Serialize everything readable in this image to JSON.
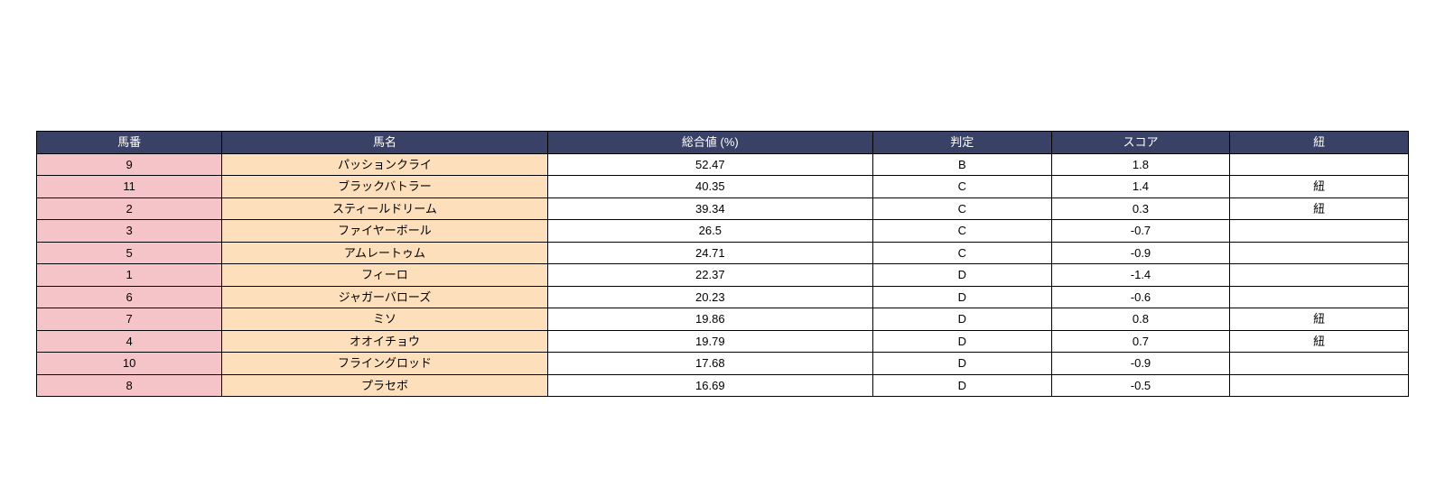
{
  "table": {
    "type": "table",
    "header_bg": "#3a4166",
    "header_color": "#ffffff",
    "border_color": "#000000",
    "col_num_bg": "#f5c4c9",
    "col_name_bg": "#fde0bb",
    "col_plain_bg": "#ffffff",
    "font_size": 13,
    "columns": [
      {
        "key": "num",
        "label": "馬番",
        "width": "13.5%"
      },
      {
        "key": "name",
        "label": "馬名",
        "width": "23.7%"
      },
      {
        "key": "total",
        "label": "総合値 (%)",
        "width": "23.7%"
      },
      {
        "key": "judge",
        "label": "判定",
        "width": "13%"
      },
      {
        "key": "score",
        "label": "スコア",
        "width": "13%"
      },
      {
        "key": "himo",
        "label": "紐",
        "width": "13%"
      }
    ],
    "rows": [
      {
        "num": "9",
        "name": "パッションクライ",
        "total": "52.47",
        "judge": "B",
        "score": "1.8",
        "himo": ""
      },
      {
        "num": "11",
        "name": "ブラックバトラー",
        "total": "40.35",
        "judge": "C",
        "score": "1.4",
        "himo": "紐"
      },
      {
        "num": "2",
        "name": "スティールドリーム",
        "total": "39.34",
        "judge": "C",
        "score": "0.3",
        "himo": "紐"
      },
      {
        "num": "3",
        "name": "ファイヤーボール",
        "total": "26.5",
        "judge": "C",
        "score": "-0.7",
        "himo": ""
      },
      {
        "num": "5",
        "name": "アムレートゥム",
        "total": "24.71",
        "judge": "C",
        "score": "-0.9",
        "himo": ""
      },
      {
        "num": "1",
        "name": "フィーロ",
        "total": "22.37",
        "judge": "D",
        "score": "-1.4",
        "himo": ""
      },
      {
        "num": "6",
        "name": "ジャガーバローズ",
        "total": "20.23",
        "judge": "D",
        "score": "-0.6",
        "himo": ""
      },
      {
        "num": "7",
        "name": "ミソ",
        "total": "19.86",
        "judge": "D",
        "score": "0.8",
        "himo": "紐"
      },
      {
        "num": "4",
        "name": "オオイチョウ",
        "total": "19.79",
        "judge": "D",
        "score": "0.7",
        "himo": "紐"
      },
      {
        "num": "10",
        "name": "フライングロッド",
        "total": "17.68",
        "judge": "D",
        "score": "-0.9",
        "himo": ""
      },
      {
        "num": "8",
        "name": "プラセボ",
        "total": "16.69",
        "judge": "D",
        "score": "-0.5",
        "himo": ""
      }
    ]
  }
}
